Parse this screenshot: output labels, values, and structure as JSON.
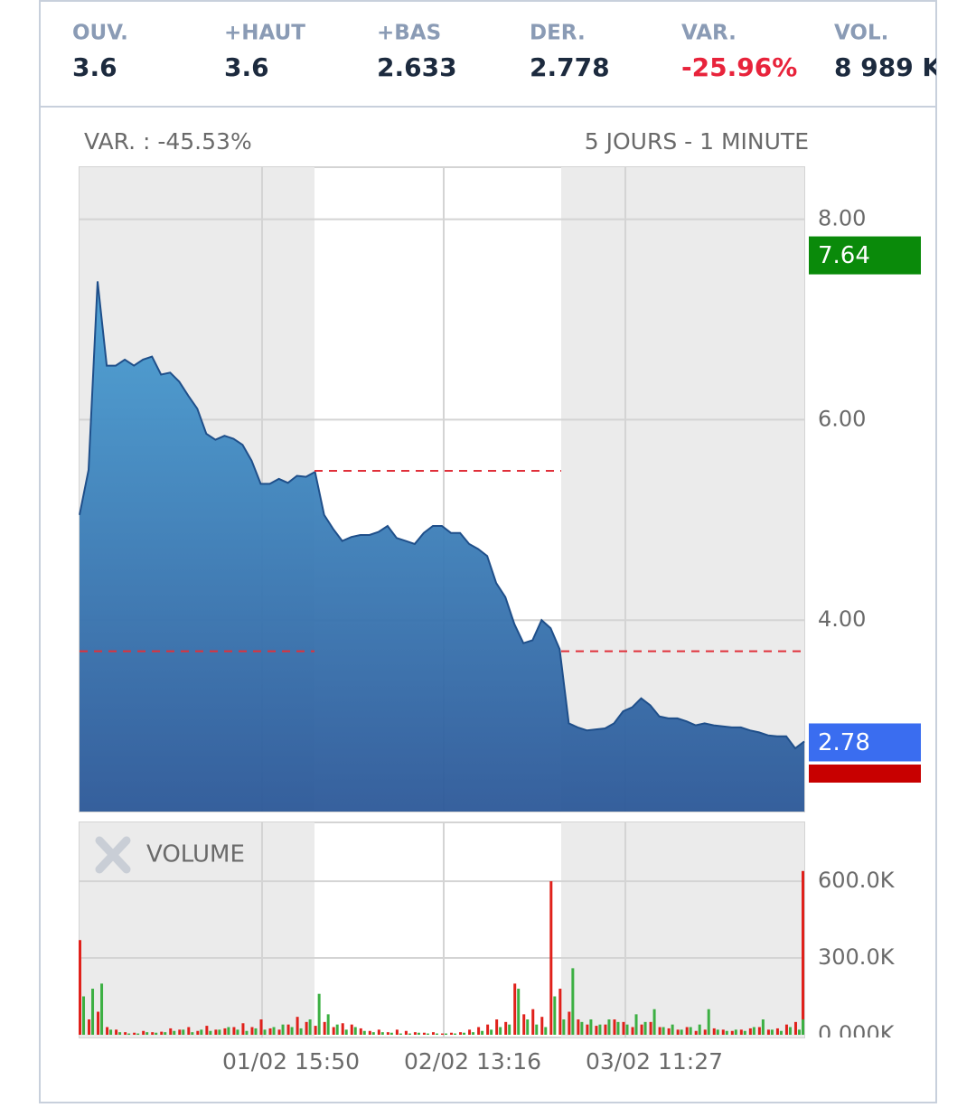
{
  "header": {
    "stats": [
      {
        "label": "OUV.",
        "value": "3.6"
      },
      {
        "label": "+HAUT",
        "value": "3.6"
      },
      {
        "label": "+BAS",
        "value": "2.633"
      },
      {
        "label": "DER.",
        "value": "2.778"
      },
      {
        "label": "VAR.",
        "value": "-25.96%"
      },
      {
        "label": "VOL.",
        "value": "8 989 K"
      }
    ]
  },
  "chart_data": [
    {
      "type": "area",
      "title": "VAR. : -45.53%",
      "subtitle": "5 JOURS - 1 MINUTE",
      "color": "#1f4f8a",
      "values": [
        5.05,
        5.5,
        7.38,
        6.54,
        6.54,
        6.6,
        6.54,
        6.6,
        6.63,
        6.45,
        6.47,
        6.38,
        6.24,
        6.11,
        5.86,
        5.8,
        5.84,
        5.81,
        5.75,
        5.59,
        5.36,
        5.36,
        5.41,
        5.37,
        5.44,
        5.43,
        5.48,
        5.05,
        4.91,
        4.79,
        4.83,
        4.85,
        4.85,
        4.88,
        4.94,
        4.82,
        4.79,
        4.76,
        4.87,
        4.94,
        4.94,
        4.87,
        4.87,
        4.76,
        4.71,
        4.64,
        4.37,
        4.23,
        3.96,
        3.77,
        3.8,
        4.0,
        3.92,
        3.71,
        2.97,
        2.93,
        2.9,
        2.91,
        2.92,
        2.97,
        3.09,
        3.13,
        3.22,
        3.15,
        3.04,
        3.02,
        3.02,
        2.99,
        2.95,
        2.97,
        2.95,
        2.94,
        2.93,
        2.93,
        2.9,
        2.88,
        2.85,
        2.84,
        2.84,
        2.72,
        2.79
      ],
      "ylim": [
        2.09,
        8.52
      ],
      "yticks": [
        {
          "value": 4,
          "label": "4.00"
        },
        {
          "value": 6,
          "label": "6.00"
        },
        {
          "value": 8,
          "label": "8.00"
        }
      ],
      "grid": true,
      "reference_lines": [
        5.49,
        3.69
      ],
      "price_labels": [
        {
          "value": 7.64,
          "label": "7.64",
          "color": "#0a8a0a"
        },
        {
          "value": 2.78,
          "label": "2.78",
          "color": "#3a6df0"
        }
      ]
    },
    {
      "type": "bar",
      "title": "VOLUME",
      "series": [
        {
          "color": "#e0211b",
          "values": [
            370000,
            60000,
            90000,
            30000,
            20000,
            10000,
            8000,
            15000,
            10000,
            12000,
            25000,
            20000,
            30000,
            15000,
            35000,
            20000,
            25000,
            30000,
            45000,
            30000,
            60000,
            25000,
            20000,
            40000,
            70000,
            50000,
            35000,
            50000,
            30000,
            45000,
            40000,
            25000,
            15000,
            20000,
            10000,
            20000,
            15000,
            10000,
            8000,
            10000,
            5000,
            8000,
            10000,
            20000,
            30000,
            40000,
            60000,
            50000,
            200000,
            80000,
            100000,
            70000,
            600000,
            180000,
            90000,
            60000,
            40000,
            35000,
            40000,
            60000,
            50000,
            30000,
            40000,
            50000,
            30000,
            25000,
            20000,
            30000,
            15000,
            20000,
            25000,
            20000,
            15000,
            20000,
            25000,
            30000,
            20000,
            25000,
            40000,
            50000,
            640000
          ]
        },
        {
          "color": "#3cb043",
          "values": [
            150000,
            180000,
            200000,
            20000,
            10000,
            5000,
            5000,
            10000,
            8000,
            10000,
            15000,
            20000,
            10000,
            20000,
            15000,
            20000,
            30000,
            20000,
            15000,
            25000,
            20000,
            30000,
            40000,
            30000,
            25000,
            60000,
            160000,
            80000,
            40000,
            20000,
            30000,
            15000,
            10000,
            10000,
            8000,
            5000,
            5000,
            8000,
            5000,
            5000,
            5000,
            5000,
            8000,
            10000,
            15000,
            20000,
            30000,
            40000,
            180000,
            60000,
            40000,
            30000,
            150000,
            60000,
            260000,
            50000,
            60000,
            40000,
            60000,
            50000,
            40000,
            80000,
            50000,
            100000,
            30000,
            40000,
            20000,
            30000,
            40000,
            100000,
            20000,
            15000,
            20000,
            15000,
            30000,
            60000,
            20000,
            15000,
            30000,
            20000,
            60000
          ]
        }
      ],
      "ylim": [
        0,
        830000
      ],
      "yticks": [
        {
          "value": 0,
          "label": "0.000K"
        },
        {
          "value": 300000,
          "label": "300.0K"
        },
        {
          "value": 600000,
          "label": "600.0K"
        }
      ],
      "grid": true,
      "x_labels": [
        "01/02 15:50",
        "02/02 13:16",
        "03/02 11:27"
      ]
    }
  ]
}
